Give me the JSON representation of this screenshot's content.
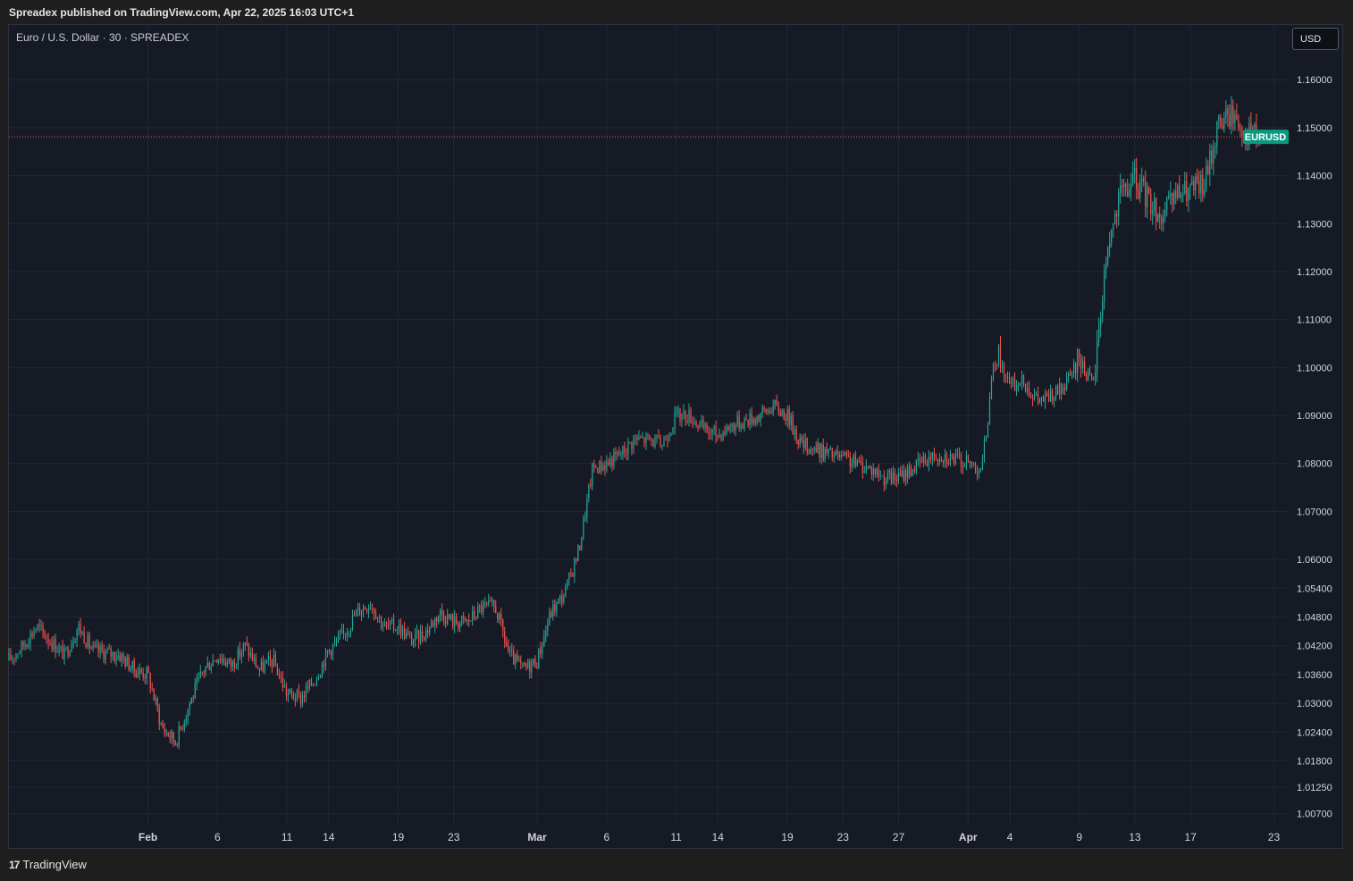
{
  "header": {
    "published": "Spreadex published on TradingView.com, Apr 22, 2025 16:03 UTC+1"
  },
  "legend": {
    "title": "Euro / U.S. Dollar · 30 · SPREADEX"
  },
  "currency_button": {
    "label": "USD"
  },
  "footer": {
    "brand": "TradingView",
    "logo_mark": "17"
  },
  "colors": {
    "up": "#26a69a",
    "down": "#ef5350",
    "background": "#161a25",
    "grid": "#232736",
    "axis_text": "#d1d4dc",
    "price_line": "#ef5350",
    "price_tag": "#089981"
  },
  "chart_data": {
    "type": "candlestick",
    "symbol_label": "EURUSD",
    "current_price": 1.1481,
    "ylim": [
      1.0045,
      1.166
    ],
    "y_ticks": [
      {
        "value": 1.16,
        "label": "1.16000"
      },
      {
        "value": 1.15,
        "label": "1.15000"
      },
      {
        "value": 1.14,
        "label": "1.14000"
      },
      {
        "value": 1.13,
        "label": "1.13000"
      },
      {
        "value": 1.12,
        "label": "1.12000"
      },
      {
        "value": 1.11,
        "label": "1.11000"
      },
      {
        "value": 1.1,
        "label": "1.10000"
      },
      {
        "value": 1.09,
        "label": "1.09000"
      },
      {
        "value": 1.08,
        "label": "1.08000"
      },
      {
        "value": 1.07,
        "label": "1.07000"
      },
      {
        "value": 1.06,
        "label": "1.06000"
      },
      {
        "value": 1.054,
        "label": "1.05400"
      },
      {
        "value": 1.048,
        "label": "1.04800"
      },
      {
        "value": 1.042,
        "label": "1.04200"
      },
      {
        "value": 1.036,
        "label": "1.03600"
      },
      {
        "value": 1.03,
        "label": "1.03000"
      },
      {
        "value": 1.024,
        "label": "1.02400"
      },
      {
        "value": 1.018,
        "label": "1.01800"
      },
      {
        "value": 1.0125,
        "label": "1.01250"
      },
      {
        "value": 1.007,
        "label": "1.00700"
      }
    ],
    "x_ticks": [
      {
        "date": "2025-02-01",
        "label": "Feb",
        "bold": true
      },
      {
        "date": "2025-02-06",
        "label": "6"
      },
      {
        "date": "2025-02-11",
        "label": "11"
      },
      {
        "date": "2025-02-14",
        "label": "14"
      },
      {
        "date": "2025-02-19",
        "label": "19"
      },
      {
        "date": "2025-02-23",
        "label": "23"
      },
      {
        "date": "2025-03-01",
        "label": "Mar",
        "bold": true
      },
      {
        "date": "2025-03-06",
        "label": "6"
      },
      {
        "date": "2025-03-11",
        "label": "11"
      },
      {
        "date": "2025-03-14",
        "label": "14"
      },
      {
        "date": "2025-03-19",
        "label": "19"
      },
      {
        "date": "2025-03-23",
        "label": "23"
      },
      {
        "date": "2025-03-27",
        "label": "27"
      },
      {
        "date": "2025-04-01",
        "label": "Apr",
        "bold": true
      },
      {
        "date": "2025-04-04",
        "label": "4"
      },
      {
        "date": "2025-04-09",
        "label": "9"
      },
      {
        "date": "2025-04-13",
        "label": "13"
      },
      {
        "date": "2025-04-17",
        "label": "17"
      },
      {
        "date": "2025-04-23",
        "label": "23"
      }
    ],
    "path": [
      [
        "2025-01-22",
        1.039
      ],
      [
        "2025-01-23",
        1.042
      ],
      [
        "2025-01-24",
        1.046
      ],
      [
        "2025-01-26",
        1.04
      ],
      [
        "2025-01-27",
        1.046
      ],
      [
        "2025-01-28",
        1.041
      ],
      [
        "2025-01-30",
        1.04
      ],
      [
        "2025-01-31",
        1.037
      ],
      [
        "2025-02-01",
        1.036
      ],
      [
        "2025-02-02",
        1.025
      ],
      [
        "2025-02-03",
        1.022
      ],
      [
        "2025-02-04",
        1.03
      ],
      [
        "2025-02-05",
        1.037
      ],
      [
        "2025-02-06",
        1.04
      ],
      [
        "2025-02-07",
        1.038
      ],
      [
        "2025-02-08",
        1.042
      ],
      [
        "2025-02-09",
        1.037
      ],
      [
        "2025-02-10",
        1.039
      ],
      [
        "2025-02-11",
        1.032
      ],
      [
        "2025-02-12",
        1.031
      ],
      [
        "2025-02-13",
        1.035
      ],
      [
        "2025-02-14",
        1.041
      ],
      [
        "2025-02-15",
        1.044
      ],
      [
        "2025-02-16",
        1.049
      ],
      [
        "2025-02-17",
        1.051
      ],
      [
        "2025-02-18",
        1.046
      ],
      [
        "2025-02-19",
        1.046
      ],
      [
        "2025-02-20",
        1.043
      ],
      [
        "2025-02-21",
        1.045
      ],
      [
        "2025-02-22",
        1.049
      ],
      [
        "2025-02-23",
        1.047
      ],
      [
        "2025-02-24",
        1.047
      ],
      [
        "2025-02-25",
        1.05
      ],
      [
        "2025-02-26",
        1.05
      ],
      [
        "2025-02-27",
        1.04
      ],
      [
        "2025-02-28",
        1.037
      ],
      [
        "2025-03-01",
        1.039
      ],
      [
        "2025-03-02",
        1.049
      ],
      [
        "2025-03-03",
        1.053
      ],
      [
        "2025-03-04",
        1.062
      ],
      [
        "2025-03-05",
        1.079
      ],
      [
        "2025-03-06",
        1.08
      ],
      [
        "2025-03-07",
        1.082
      ],
      [
        "2025-03-08",
        1.085
      ],
      [
        "2025-03-09",
        1.085
      ],
      [
        "2025-03-10",
        1.084
      ],
      [
        "2025-03-11",
        1.09
      ],
      [
        "2025-03-12",
        1.09
      ],
      [
        "2025-03-13",
        1.087
      ],
      [
        "2025-03-14",
        1.086
      ],
      [
        "2025-03-15",
        1.088
      ],
      [
        "2025-03-16",
        1.089
      ],
      [
        "2025-03-17",
        1.09
      ],
      [
        "2025-03-18",
        1.092
      ],
      [
        "2025-03-19",
        1.09
      ],
      [
        "2025-03-20",
        1.084
      ],
      [
        "2025-03-21",
        1.083
      ],
      [
        "2025-03-22",
        1.082
      ],
      [
        "2025-03-23",
        1.081
      ],
      [
        "2025-03-24",
        1.08
      ],
      [
        "2025-03-25",
        1.079
      ],
      [
        "2025-03-26",
        1.077
      ],
      [
        "2025-03-27",
        1.077
      ],
      [
        "2025-03-28",
        1.079
      ],
      [
        "2025-03-29",
        1.081
      ],
      [
        "2025-03-30",
        1.082
      ],
      [
        "2025-03-31",
        1.081
      ],
      [
        "2025-04-01",
        1.08
      ],
      [
        "2025-04-02",
        1.079
      ],
      [
        "2025-04-03",
        1.104
      ],
      [
        "2025-04-04",
        1.096
      ],
      [
        "2025-04-05",
        1.097
      ],
      [
        "2025-04-06",
        1.093
      ],
      [
        "2025-04-07",
        1.094
      ],
      [
        "2025-04-08",
        1.096
      ],
      [
        "2025-04-09",
        1.102
      ],
      [
        "2025-04-10",
        1.096
      ],
      [
        "2025-04-11",
        1.125
      ],
      [
        "2025-04-12",
        1.136
      ],
      [
        "2025-04-13",
        1.139
      ],
      [
        "2025-04-14",
        1.135
      ],
      [
        "2025-04-15",
        1.131
      ],
      [
        "2025-04-16",
        1.136
      ],
      [
        "2025-04-17",
        1.137
      ],
      [
        "2025-04-18",
        1.138
      ],
      [
        "2025-04-19",
        1.151
      ],
      [
        "2025-04-20",
        1.153
      ],
      [
        "2025-04-21",
        1.149
      ],
      [
        "2025-04-22",
        1.148
      ]
    ]
  }
}
